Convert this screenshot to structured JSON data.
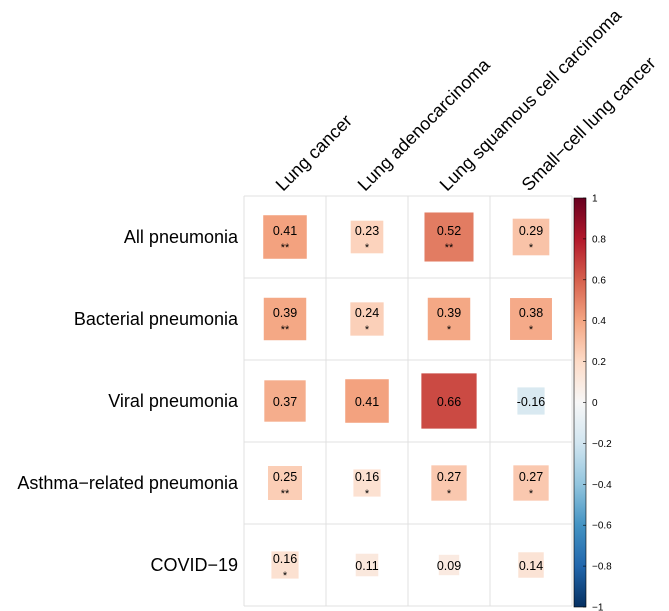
{
  "chart_data": {
    "type": "heatmap",
    "title": "",
    "columns": [
      "Lung cancer",
      "Lung adenocarcinoma",
      "Lung squamous cell carcinoma",
      "Small−cell lung cancer"
    ],
    "rows": [
      "All pneumonia",
      "Bacterial pneumonia",
      "Viral pneumonia",
      "Asthma−related pneumonia",
      "COVID−19"
    ],
    "values": [
      [
        0.41,
        0.23,
        0.52,
        0.29
      ],
      [
        0.39,
        0.24,
        0.39,
        0.38
      ],
      [
        0.37,
        0.41,
        0.66,
        -0.16
      ],
      [
        0.25,
        0.16,
        0.27,
        0.27
      ],
      [
        0.16,
        0.11,
        0.09,
        0.14
      ]
    ],
    "value_labels": [
      [
        "0.41",
        "0.23",
        "0.52",
        "0.29"
      ],
      [
        "0.39",
        "0.24",
        "0.39",
        "0.38"
      ],
      [
        "0.37",
        "0.41",
        "0.66",
        "-0.16"
      ],
      [
        "0.25",
        "0.16",
        "0.27",
        "0.27"
      ],
      [
        "0.16",
        "0.11",
        "0.09",
        "0.14"
      ]
    ],
    "significance": [
      [
        "**",
        "*",
        "**",
        "*"
      ],
      [
        "**",
        "*",
        "*",
        "*"
      ],
      [
        "",
        "",
        "",
        ""
      ],
      [
        "**",
        "*",
        "*",
        "*"
      ],
      [
        "*",
        "",
        "",
        ""
      ]
    ],
    "colorbar": {
      "range": [
        -1,
        1
      ],
      "ticks": [
        "1",
        "0.8",
        "0.6",
        "0.4",
        "0.2",
        "0",
        "−0.2",
        "−0.4",
        "−0.6",
        "−0.8",
        "−1"
      ],
      "tick_values": [
        1,
        0.8,
        0.6,
        0.4,
        0.2,
        0,
        -0.2,
        -0.4,
        -0.6,
        -0.8,
        -1
      ]
    },
    "colors": {
      "negative_end": "#053061",
      "mid": "#f7f7f7",
      "positive_end": "#67001f",
      "grid": "#e0e0e0"
    }
  }
}
